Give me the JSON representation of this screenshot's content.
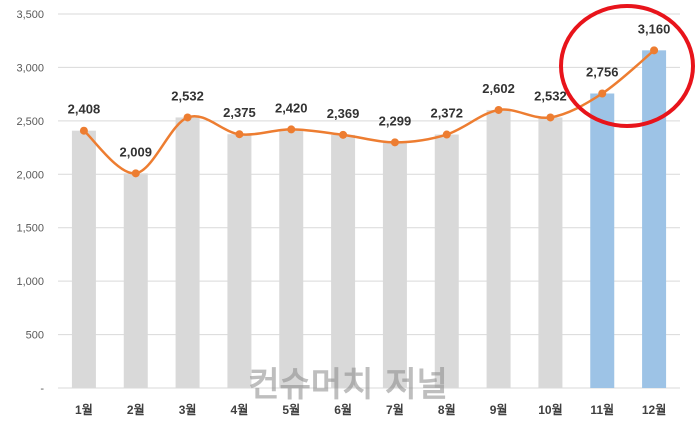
{
  "chart_data": {
    "type": "bar",
    "categories": [
      "1월",
      "2월",
      "3월",
      "4월",
      "5월",
      "6월",
      "7월",
      "8월",
      "9월",
      "10월",
      "11월",
      "12월"
    ],
    "series": [
      {
        "type": "bar",
        "values": [
          2408,
          2009,
          2532,
          2375,
          2420,
          2369,
          2299,
          2372,
          2602,
          2532,
          2756,
          3160
        ]
      },
      {
        "type": "line",
        "values": [
          2408,
          2009,
          2532,
          2375,
          2420,
          2369,
          2299,
          2372,
          2602,
          2532,
          2756,
          3160
        ]
      }
    ],
    "data_labels": [
      "2,408",
      "2,009",
      "2,532",
      "2,375",
      "2,420",
      "2,369",
      "2,299",
      "2,372",
      "2,602",
      "2,532",
      "2,756",
      "3,160"
    ],
    "y_ticks": [
      "-",
      "500",
      "1,000",
      "1,500",
      "2,000",
      "2,500",
      "3,000",
      "3,500"
    ],
    "ylim": [
      0,
      3500
    ],
    "title": "",
    "xlabel": "",
    "ylabel": "",
    "grid": true,
    "legend": "none",
    "highlighted_categories": [
      "11월",
      "12월"
    ],
    "colors": {
      "bar": "#d9d9d9",
      "bar_highlight": "#9dc3e6",
      "line": "#ed7d31",
      "grid": "#d9d9d9",
      "highlight_circle": "#e8141b"
    }
  },
  "watermark": "컨슈머치 저널"
}
